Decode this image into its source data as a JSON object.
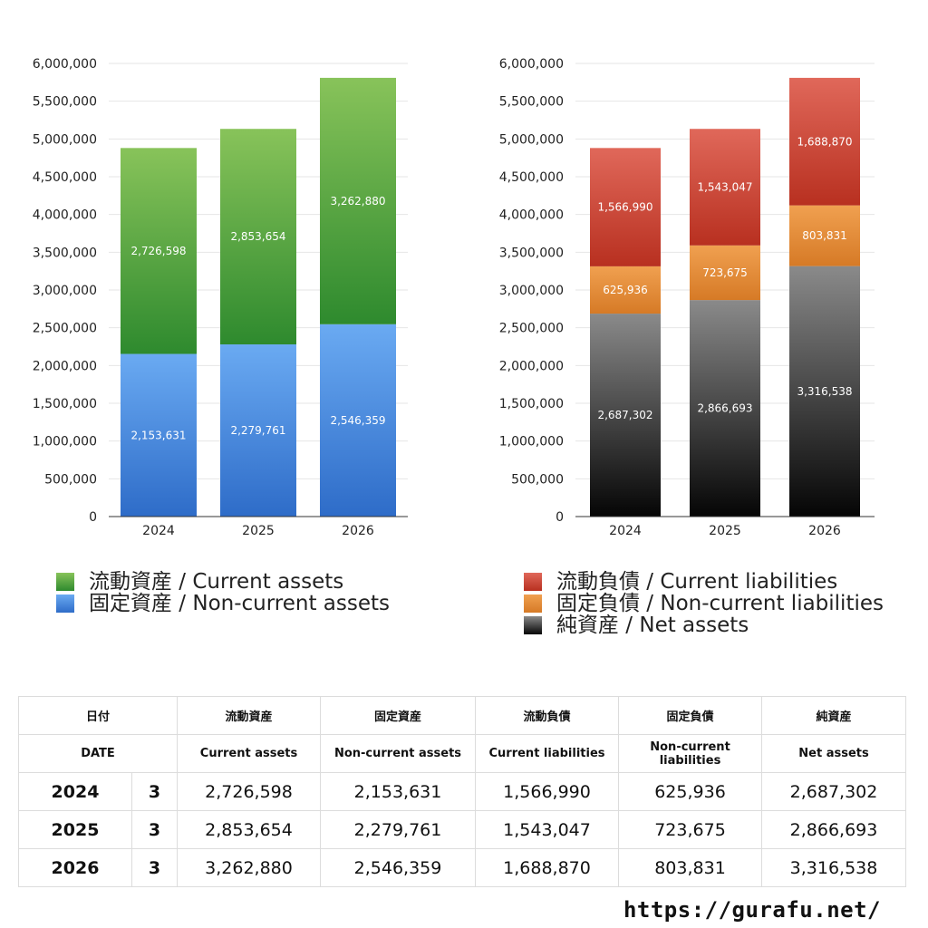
{
  "chart_data": [
    {
      "type": "bar",
      "stacked": true,
      "categories": [
        "2024",
        "2025",
        "2026"
      ],
      "ylim": [
        0,
        6000000
      ],
      "yticks": [
        "0",
        "500,000",
        "1,000,000",
        "1,500,000",
        "2,000,000",
        "2,500,000",
        "3,000,000",
        "3,500,000",
        "4,000,000",
        "4,500,000",
        "5,000,000",
        "5,500,000",
        "6,000,000"
      ],
      "series": [
        {
          "name": "固定資産 / Non-current assets",
          "values": [
            2153631,
            2279761,
            2546359
          ],
          "labels": [
            "2,153,631",
            "2,279,761",
            "2,546,359"
          ],
          "color_top": "#6aaaf2",
          "color_bottom": "#2e6cc8"
        },
        {
          "name": "流動資産 / Current assets",
          "values": [
            2726598,
            2853654,
            3262880
          ],
          "labels": [
            "2,726,598",
            "2,853,654",
            "3,262,880"
          ],
          "color_top": "#88c35a",
          "color_bottom": "#2e8a2e"
        }
      ]
    },
    {
      "type": "bar",
      "stacked": true,
      "categories": [
        "2024",
        "2025",
        "2026"
      ],
      "ylim": [
        0,
        6000000
      ],
      "yticks": [
        "0",
        "500,000",
        "1,000,000",
        "1,500,000",
        "2,000,000",
        "2,500,000",
        "3,000,000",
        "3,500,000",
        "4,000,000",
        "4,500,000",
        "5,000,000",
        "5,500,000",
        "6,000,000"
      ],
      "series": [
        {
          "name": "純資産 / Net assets",
          "values": [
            2687302,
            2866693,
            3316538
          ],
          "labels": [
            "2,687,302",
            "2,866,693",
            "3,316,538"
          ],
          "color_top": "#8a8a8a",
          "color_bottom": "#050505"
        },
        {
          "name": "固定負債 / Non-current liabilities",
          "values": [
            625936,
            723675,
            803831
          ],
          "labels": [
            "625,936",
            "723,675",
            "803,831"
          ],
          "color_top": "#f0a050",
          "color_bottom": "#d67a26"
        },
        {
          "name": "流動負債 / Current liabilities",
          "values": [
            1566990,
            1543047,
            1688870
          ],
          "labels": [
            "1,566,990",
            "1,543,047",
            "1,688,870"
          ],
          "color_top": "#e0685a",
          "color_bottom": "#b83020"
        }
      ]
    }
  ],
  "legends": {
    "left": [
      {
        "label": "流動資産 / Current assets",
        "color": "#5fa84a"
      },
      {
        "label": "固定資産 / Non-current assets",
        "color": "#4a8ae0"
      }
    ],
    "right": [
      {
        "label": "流動負債 / Current liabilities",
        "color": "#d24a3a"
      },
      {
        "label": "固定負債 / Non-current liabilities",
        "color": "#e58a35"
      },
      {
        "label": "純資産 / Net assets",
        "color": "#333333"
      }
    ]
  },
  "table": {
    "header_jp": [
      "日付",
      "流動資産",
      "固定資産",
      "流動負債",
      "固定負債",
      "純資産"
    ],
    "header_en": [
      "DATE",
      "Current assets",
      "Non-current assets",
      "Current liabilities",
      "Non-current liabilities",
      "Net assets"
    ],
    "rows": [
      [
        "2024",
        "3",
        "2,726,598",
        "2,153,631",
        "1,566,990",
        "625,936",
        "2,687,302"
      ],
      [
        "2025",
        "3",
        "2,853,654",
        "2,279,761",
        "1,543,047",
        "723,675",
        "2,866,693"
      ],
      [
        "2026",
        "3",
        "3,262,880",
        "2,546,359",
        "1,688,870",
        "803,831",
        "3,316,538"
      ]
    ]
  },
  "site": "https://gurafu.net/"
}
